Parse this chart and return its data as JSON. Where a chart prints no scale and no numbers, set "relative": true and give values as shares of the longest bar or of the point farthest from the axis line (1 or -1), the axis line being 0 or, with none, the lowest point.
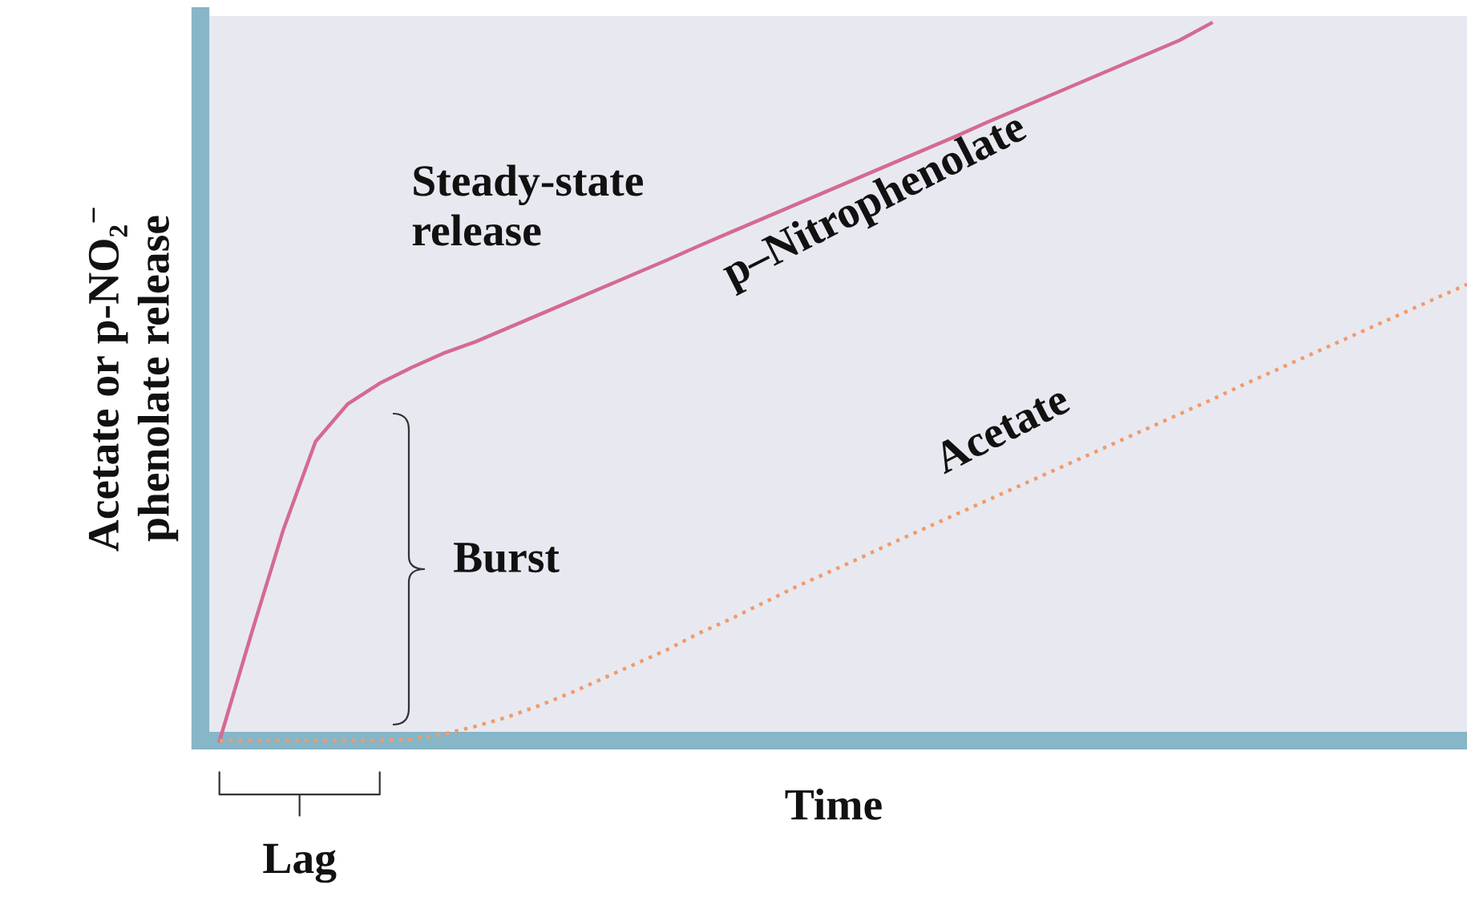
{
  "chart_data": {
    "type": "line",
    "relative": true,
    "xlabel": "Time",
    "ylabel": "Acetate or p-NO₂$^{−}$\nphenolate release",
    "categories": [
      null,
      null,
      null,
      null,
      null,
      null,
      null,
      null,
      null,
      null,
      null,
      null,
      null,
      null,
      null,
      null,
      null,
      null,
      null,
      null,
      null,
      null,
      null,
      null,
      null,
      null,
      null,
      null,
      null,
      null,
      null,
      null,
      null,
      null,
      null,
      null,
      null,
      null,
      null,
      null
    ],
    "series": [
      {
        "name": "p–Nitrophenolate",
        "color": "#d46a92",
        "line_style": "solid",
        "values": [
          0,
          0.15,
          0.295,
          0.417,
          0.469,
          0.498,
          0.52,
          0.54,
          0.556,
          0.575,
          0.594,
          0.613,
          0.632,
          0.651,
          0.67,
          0.69,
          0.709,
          0.728,
          0.747,
          0.766,
          0.785,
          0.804,
          0.823,
          0.842,
          0.862,
          0.881,
          0.9,
          0.919,
          0.938,
          0.957,
          0.976,
          1,
          null,
          null,
          null,
          null,
          null,
          null,
          null,
          null
        ]
      },
      {
        "name": "Acetate",
        "color": "#f29a6c",
        "line_style": "dotted",
        "values": [
          0,
          0,
          0,
          0,
          0,
          0,
          0.002,
          0.009,
          0.02,
          0.033,
          0.049,
          0.067,
          0.087,
          0.107,
          0.127,
          0.15,
          0.17,
          0.192,
          0.214,
          0.234,
          0.254,
          0.275,
          0.295,
          0.315,
          0.335,
          0.355,
          0.375,
          0.395,
          0.415,
          0.435,
          0.455,
          0.475,
          0.496,
          0.516,
          0.536,
          0.556,
          0.576,
          0.596,
          0.616,
          0.636
        ]
      }
    ],
    "annotations": [
      "Steady-state\nrelease",
      "Burst",
      "Lag"
    ]
  }
}
